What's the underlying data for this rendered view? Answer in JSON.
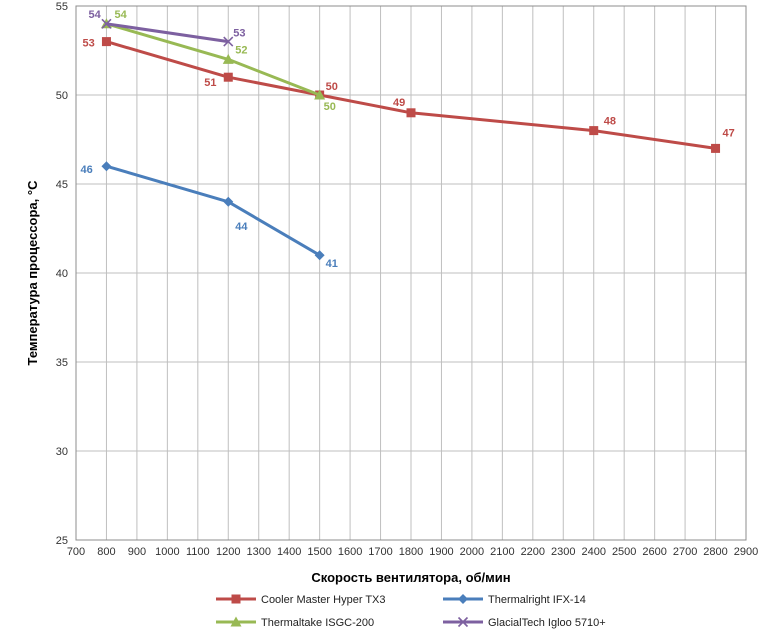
{
  "chart_data": {
    "type": "line",
    "xlabel": "Скорость вентилятора, об/мин",
    "ylabel": "Температура процессора, °С",
    "xlim": [
      700,
      2900
    ],
    "ylim": [
      25,
      55
    ],
    "x_ticks": [
      700,
      800,
      900,
      1000,
      1100,
      1200,
      1300,
      1400,
      1500,
      1600,
      1700,
      1800,
      1900,
      2000,
      2100,
      2200,
      2300,
      2400,
      2500,
      2600,
      2700,
      2800,
      2900
    ],
    "y_ticks": [
      25,
      30,
      35,
      40,
      45,
      50,
      55
    ],
    "grid": true,
    "legend_position": "bottom",
    "series": [
      {
        "name": "Cooler Master Hyper TX3",
        "color": "#be4b48",
        "marker": "square",
        "x": [
          800,
          1200,
          1500,
          1800,
          2400,
          2800
        ],
        "y": [
          53,
          51,
          50,
          49,
          48,
          47
        ],
        "labels": [
          "53",
          "51",
          "50",
          "49",
          "48",
          "47"
        ]
      },
      {
        "name": "Thermalright IFX-14",
        "color": "#4a7ebb",
        "marker": "diamond",
        "x": [
          800,
          1200,
          1500
        ],
        "y": [
          46,
          44,
          41
        ],
        "labels": [
          "46",
          "44",
          "41"
        ]
      },
      {
        "name": "Thermaltake ISGC-200",
        "color": "#98b954",
        "marker": "triangle",
        "x": [
          800,
          1200,
          1500
        ],
        "y": [
          54,
          52,
          50
        ],
        "labels": [
          "54",
          "52",
          "50"
        ]
      },
      {
        "name": "GlacialTech Igloo 5710+",
        "color": "#7d60a0",
        "marker": "x",
        "x": [
          800,
          1200
        ],
        "y": [
          54,
          53
        ],
        "labels": [
          "54",
          "53"
        ]
      }
    ]
  }
}
